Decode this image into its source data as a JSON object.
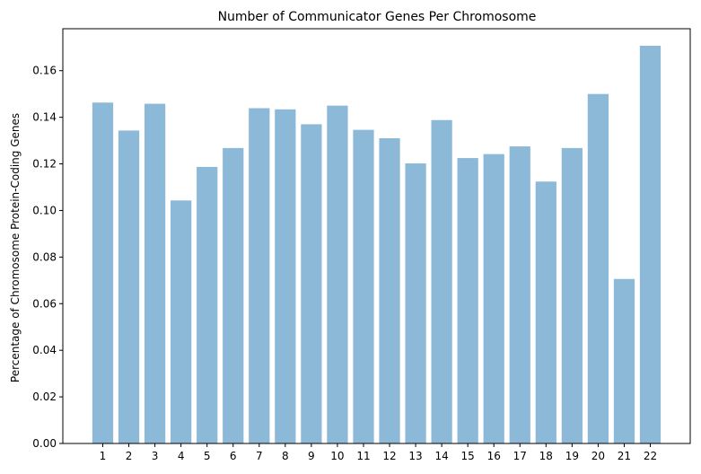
{
  "chart_data": {
    "type": "bar",
    "title": "Number of Communicator Genes Per Chromosome",
    "xlabel": "",
    "ylabel": "Percentage of Chromosome Protein-Coding Genes",
    "categories": [
      "1",
      "2",
      "3",
      "4",
      "5",
      "6",
      "7",
      "8",
      "9",
      "10",
      "11",
      "12",
      "13",
      "14",
      "15",
      "16",
      "17",
      "18",
      "19",
      "20",
      "21",
      "22"
    ],
    "values": [
      0.1463,
      0.1343,
      0.1458,
      0.1043,
      0.1187,
      0.1268,
      0.1439,
      0.1434,
      0.137,
      0.145,
      0.1346,
      0.131,
      0.1202,
      0.1388,
      0.1225,
      0.1242,
      0.1275,
      0.1124,
      0.1268,
      0.15,
      0.0706,
      0.1707
    ],
    "ylim": [
      0,
      0.178
    ],
    "yticks": [
      "0.00",
      "0.02",
      "0.04",
      "0.06",
      "0.08",
      "0.10",
      "0.12",
      "0.14",
      "0.16"
    ],
    "bar_color": "#8db9d9",
    "grid": false,
    "legend": "none"
  }
}
